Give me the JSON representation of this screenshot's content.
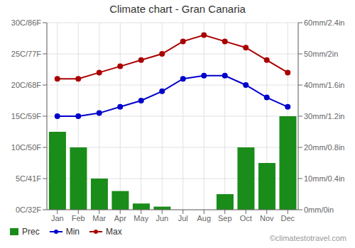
{
  "chart_data": {
    "type": "bar",
    "title": "Climate chart - Gran Canaria",
    "categories": [
      "Jan",
      "Feb",
      "Mar",
      "Apr",
      "May",
      "Jun",
      "Jul",
      "Aug",
      "Sep",
      "Oct",
      "Nov",
      "Dec"
    ],
    "series": [
      {
        "name": "Prec",
        "type": "bar",
        "axis": "y2",
        "color": "#1a8c1a",
        "values": [
          25,
          20,
          10,
          6,
          2,
          1,
          0,
          0,
          5,
          20,
          15,
          30
        ]
      },
      {
        "name": "Min",
        "type": "line",
        "color": "#0000cc",
        "marker": "o",
        "values": [
          15,
          15,
          15.5,
          16.5,
          17.5,
          19,
          21,
          21.5,
          21.5,
          20,
          18,
          16.5
        ]
      },
      {
        "name": "Max",
        "type": "line",
        "color": "#aa0000",
        "marker": "o",
        "values": [
          21,
          21,
          22,
          23,
          24,
          25,
          27,
          28,
          27,
          26,
          24,
          22
        ]
      }
    ],
    "ylim": [
      0,
      30
    ],
    "yticks": [
      {
        "value": 0,
        "label": "0C/32F"
      },
      {
        "value": 5,
        "label": "5C/41F"
      },
      {
        "value": 10,
        "label": "10C/50F"
      },
      {
        "value": 15,
        "label": "15C/59F"
      },
      {
        "value": 20,
        "label": "20C/68F"
      },
      {
        "value": 25,
        "label": "25C/77F"
      },
      {
        "value": 30,
        "label": "30C/86F"
      }
    ],
    "y2lim": [
      0,
      60
    ],
    "y2ticks": [
      {
        "value": 0,
        "label": "0mm/0in"
      },
      {
        "value": 10,
        "label": "10mm/0.4in"
      },
      {
        "value": 20,
        "label": "20mm/0.8in"
      },
      {
        "value": 30,
        "label": "30mm/1.2in"
      },
      {
        "value": 40,
        "label": "40mm/1.6in"
      },
      {
        "value": 50,
        "label": "50mm/2in"
      },
      {
        "value": 60,
        "label": "60mm/2.4in"
      }
    ],
    "grid": true,
    "legend": "bottom-left",
    "annotations": [
      "©climatestotravel.com"
    ]
  }
}
